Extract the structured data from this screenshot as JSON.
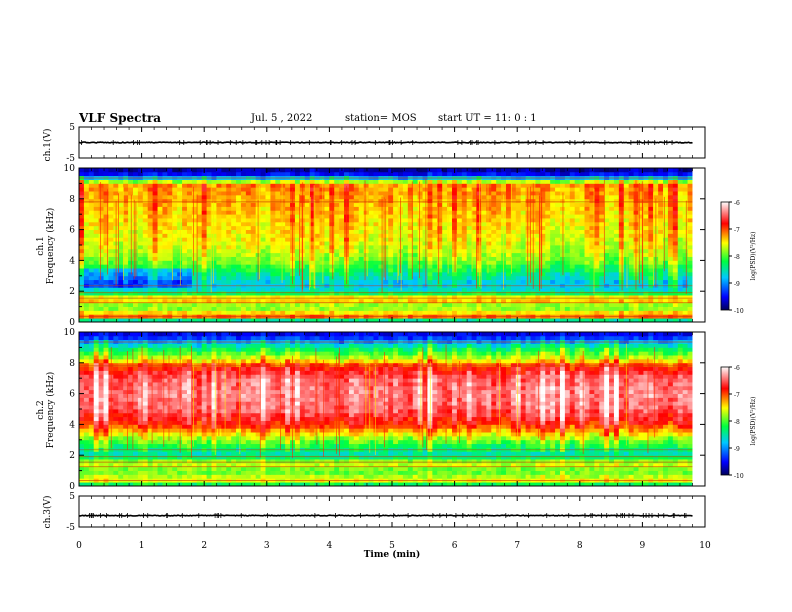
{
  "header": {
    "title": "VLF Spectra",
    "date": "Jul. 5 , 2022",
    "station": "station= MOS",
    "start": "start UT = 11: 0 : 1"
  },
  "chart_data": [
    {
      "type": "line",
      "name": "ch1_waveform",
      "ylabel": "ch.1(V)",
      "ylim": [
        -5,
        5
      ],
      "yticks": [
        "5",
        "-5"
      ],
      "xlim": [
        0,
        10
      ],
      "x": [
        0,
        2.4,
        2.6,
        4.0,
        5.0,
        6.0,
        9.5,
        9.8
      ],
      "y": [
        0,
        0,
        0,
        0,
        0,
        0,
        0,
        0
      ]
    },
    {
      "type": "heatmap",
      "name": "ch1_spectrogram",
      "ylabel": "ch.1\nFrequency (kHz)",
      "ylim": [
        0,
        10
      ],
      "yticks": [
        "0",
        "2",
        "4",
        "6",
        "8",
        "10"
      ],
      "xlim": [
        0,
        10
      ],
      "data_end_min": 9.8,
      "colorbar": {
        "label": "log(PSD)(V²/Hz)",
        "range": [
          -10,
          -6
        ],
        "ticks": [
          "-6",
          "-7",
          "-8",
          "-9",
          "-10"
        ]
      },
      "frequency_profile": {
        "freq_khz": [
          0,
          0.3,
          1.0,
          1.5,
          2.0,
          2.5,
          3.0,
          4.0,
          5.0,
          6.0,
          7.0,
          8.0,
          9.0,
          9.5,
          10.0
        ],
        "log_psd": [
          -9.5,
          -7.0,
          -8.0,
          -7.2,
          -8.6,
          -8.8,
          -8.5,
          -7.9,
          -7.6,
          -7.5,
          -7.4,
          -7.3,
          -7.2,
          -9.4,
          -9.9
        ]
      }
    },
    {
      "type": "heatmap",
      "name": "ch2_spectrogram",
      "ylabel": "ch.2\nFrequency (kHz)",
      "ylim": [
        0,
        10
      ],
      "yticks": [
        "0",
        "2",
        "4",
        "6",
        "8",
        "10"
      ],
      "xlim": [
        0,
        10
      ],
      "data_end_min": 9.8,
      "colorbar": {
        "label": "log(PSD)(V²/Hz)",
        "range": [
          -10,
          -6
        ],
        "ticks": [
          "-6",
          "-7",
          "-8",
          "-9",
          "-10"
        ]
      },
      "frequency_profile": {
        "freq_khz": [
          0,
          0.3,
          1.0,
          1.5,
          2.0,
          2.5,
          3.0,
          3.5,
          4.0,
          5.0,
          6.0,
          7.0,
          7.8,
          8.2,
          9.0,
          9.6,
          10.0
        ],
        "log_psd": [
          -8.8,
          -7.5,
          -8.0,
          -7.6,
          -8.6,
          -8.3,
          -7.9,
          -7.4,
          -6.9,
          -6.5,
          -6.4,
          -6.5,
          -6.9,
          -7.6,
          -8.4,
          -9.3,
          -9.7
        ]
      }
    },
    {
      "type": "line",
      "name": "ch3_waveform",
      "ylabel": "ch.3(V)",
      "ylim": [
        -5,
        5
      ],
      "yticks": [
        "5",
        "-5"
      ],
      "xlim": [
        0,
        10
      ],
      "x": [
        0,
        2.0,
        4.0,
        6.0,
        8.0,
        9.8
      ],
      "y": [
        -1.3,
        -1.3,
        -1.3,
        -1.3,
        -1.3,
        -1.3
      ]
    }
  ],
  "xaxis": {
    "label": "Time (min)",
    "ticks": [
      "0",
      "1",
      "2",
      "3",
      "4",
      "5",
      "6",
      "7",
      "8",
      "9",
      "10"
    ]
  },
  "colors": {
    "colormap": [
      "#00005a",
      "#0000ff",
      "#00c8ff",
      "#00ff40",
      "#ffff00",
      "#ff0000",
      "#ffffff"
    ]
  }
}
